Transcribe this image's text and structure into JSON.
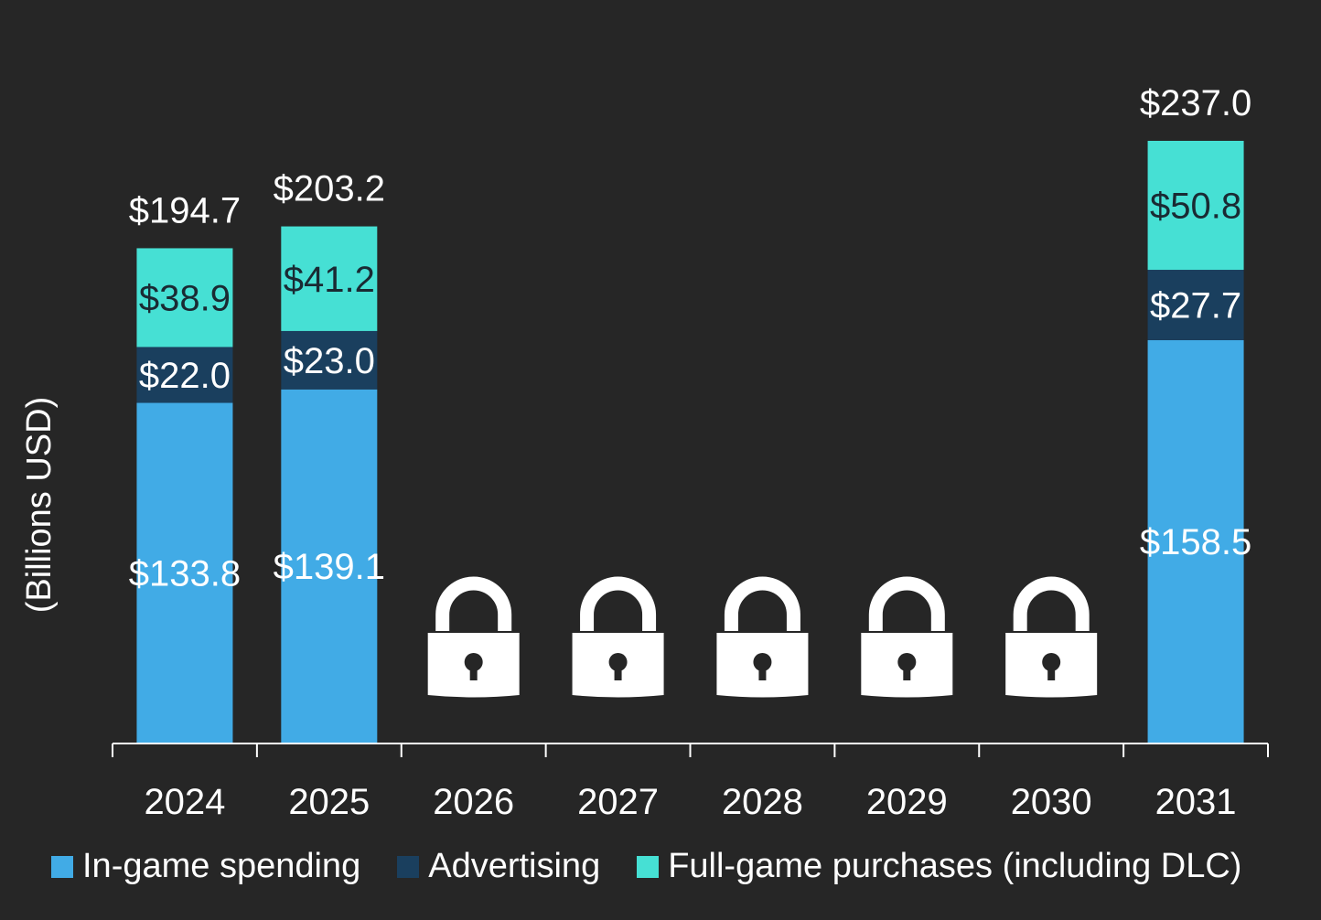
{
  "chart_data": {
    "type": "bar",
    "stacked": true,
    "ylabel": "(Billions USD)",
    "categories": [
      "2024",
      "2025",
      "2026",
      "2027",
      "2028",
      "2029",
      "2030",
      "2031"
    ],
    "locked_categories": [
      "2026",
      "2027",
      "2028",
      "2029",
      "2030"
    ],
    "series": [
      {
        "name": "In-game spending",
        "color": "#41abe6",
        "label_color": "#ffffff",
        "values": [
          133.8,
          139.1,
          null,
          null,
          null,
          null,
          null,
          158.5
        ],
        "labels": [
          "$133.8",
          "$139.1",
          null,
          null,
          null,
          null,
          null,
          "$158.5"
        ]
      },
      {
        "name": "Advertising",
        "color": "#1a3f5e",
        "label_color": "#ffffff",
        "values": [
          22.0,
          23.0,
          null,
          null,
          null,
          null,
          null,
          27.7
        ],
        "labels": [
          "$22.0",
          "$23.0",
          null,
          null,
          null,
          null,
          null,
          "$27.7"
        ]
      },
      {
        "name": "Full-game purchases (including DLC)",
        "color": "#46e0d4",
        "label_color": "#1a2a33",
        "values": [
          38.9,
          41.2,
          null,
          null,
          null,
          null,
          null,
          50.8
        ],
        "labels": [
          "$38.9",
          "$41.2",
          null,
          null,
          null,
          null,
          null,
          "$50.8"
        ]
      }
    ],
    "totals": [
      194.7,
      203.2,
      null,
      null,
      null,
      null,
      null,
      237.0
    ],
    "total_labels": [
      "$194.7",
      "$203.2",
      null,
      null,
      null,
      null,
      null,
      "$237.0"
    ],
    "ylim": [
      0,
      237
    ],
    "grid": false,
    "legend_position": "bottom",
    "lock_icon": "lock-icon"
  }
}
